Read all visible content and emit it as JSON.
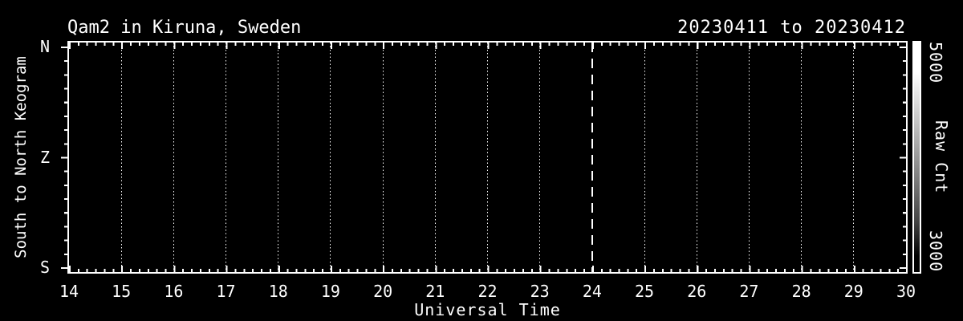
{
  "title_left": "Qam2 in Kiruna, Sweden",
  "title_right": "20230411 to 20230412",
  "colors": {
    "background": "#000000",
    "foreground": "#ffffff"
  },
  "chart_data": {
    "type": "heatmap",
    "title": "Qam2 in Kiruna, Sweden",
    "subtitle": "20230411 to 20230412",
    "xlabel": "Universal Time",
    "ylabel": "South to North Keogram",
    "x_range": [
      14,
      30
    ],
    "x_ticks": [
      14,
      15,
      16,
      17,
      18,
      19,
      20,
      21,
      22,
      23,
      24,
      25,
      26,
      27,
      28,
      29,
      30
    ],
    "x_minor_ticks_per_hour": 6,
    "y_ticks": [
      "N",
      "Z",
      "S"
    ],
    "grid": "dotted vertical line at each hour",
    "midnight_line": {
      "x": 24,
      "style": "dashed"
    },
    "values": [],
    "note": "keogram image area is entirely black (no counts rendered)",
    "colorbar": {
      "label": "Raw Cnt",
      "max_label": "5000",
      "min_label": "3000",
      "top_color": "#ffffff",
      "bottom_color": "#000000"
    }
  }
}
